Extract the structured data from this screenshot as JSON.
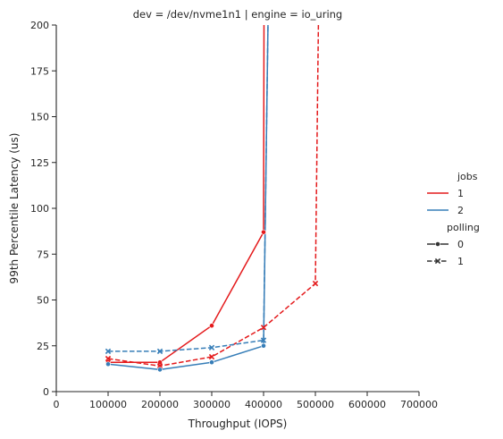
{
  "chart_data": {
    "type": "line",
    "title": "dev = /dev/nvme1n1 | engine = io_uring",
    "xlabel": "Throughput (IOPS)",
    "ylabel": "99th Percentile Latency (us)",
    "xlim": [
      0,
      700000
    ],
    "ylim": [
      0,
      200
    ],
    "xticks": [
      "0",
      "100000",
      "200000",
      "300000",
      "400000",
      "500000",
      "600000",
      "700000"
    ],
    "yticks": [
      "0",
      "25",
      "50",
      "75",
      "100",
      "125",
      "150",
      "175",
      "200"
    ],
    "grid": false,
    "legend": {
      "placement": "right",
      "jobs_title": "jobs",
      "jobs": [
        {
          "label": "1",
          "color": "#e41a1c"
        },
        {
          "label": "2",
          "color": "#377eb8"
        }
      ],
      "polling_title": "polling",
      "polling": [
        {
          "label": "0",
          "style": "solid",
          "marker": "circle"
        },
        {
          "label": "1",
          "style": "dashed",
          "marker": "x"
        }
      ]
    },
    "series": [
      {
        "jobs": "1",
        "polling": "0",
        "color": "#e41a1c",
        "style": "solid",
        "marker": "circle",
        "x": [
          100000,
          200000,
          300000,
          400000,
          401000
        ],
        "y": [
          16,
          16,
          36,
          87,
          230
        ]
      },
      {
        "jobs": "1",
        "polling": "1",
        "color": "#e41a1c",
        "style": "dashed",
        "marker": "x",
        "x": [
          100000,
          200000,
          300000,
          400000,
          500000,
          507000
        ],
        "y": [
          18,
          14,
          19,
          35,
          59,
          230
        ]
      },
      {
        "jobs": "2",
        "polling": "0",
        "color": "#377eb8",
        "style": "solid",
        "marker": "circle",
        "x": [
          100000,
          200000,
          300000,
          400000,
          410000
        ],
        "y": [
          15,
          12,
          16,
          25,
          230
        ]
      },
      {
        "jobs": "2",
        "polling": "1",
        "color": "#377eb8",
        "style": "dashed",
        "marker": "x",
        "x": [
          100000,
          200000,
          300000,
          400000,
          410000
        ],
        "y": [
          22,
          22,
          24,
          28,
          230
        ]
      }
    ]
  }
}
